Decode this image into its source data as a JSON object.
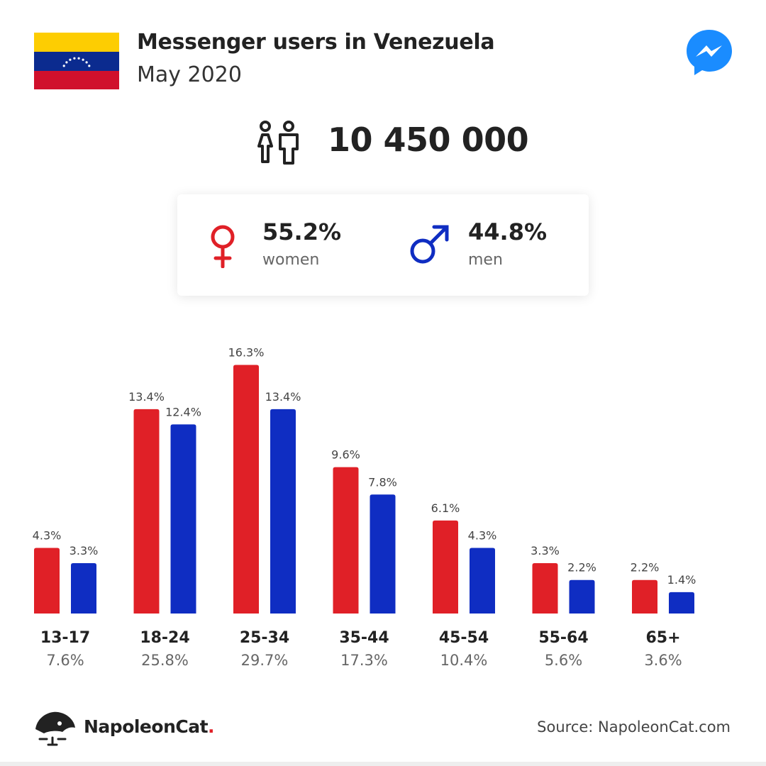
{
  "header": {
    "title": "Messenger users in Venezuela",
    "subtitle": "May 2020",
    "flag_icon": "venezuela-flag-icon",
    "app_icon": "messenger-icon"
  },
  "summary": {
    "total": "10 450 000",
    "women": {
      "percent": "55.2%",
      "label": "women"
    },
    "men": {
      "percent": "44.8%",
      "label": "men"
    }
  },
  "colors": {
    "women": "#e02027",
    "men": "#0f2dc2",
    "messenger": "#1a8cff"
  },
  "chart_data": {
    "type": "bar",
    "categories": [
      "13-17",
      "18-24",
      "25-34",
      "35-44",
      "45-54",
      "55-64",
      "65+"
    ],
    "category_totals": [
      "7.6%",
      "25.8%",
      "29.7%",
      "17.3%",
      "10.4%",
      "5.6%",
      "3.6%"
    ],
    "series": [
      {
        "values": [
          4.3,
          13.4,
          16.3,
          9.6,
          6.1,
          3.3,
          2.2
        ],
        "labels": [
          "4.3%",
          "13.4%",
          "16.3%",
          "9.6%",
          "6.1%",
          "3.3%",
          "2.2%"
        ]
      },
      {
        "values": [
          3.3,
          12.4,
          13.4,
          7.8,
          4.3,
          2.2,
          1.4
        ],
        "labels": [
          "3.3%",
          "12.4%",
          "13.4%",
          "7.8%",
          "4.3%",
          "2.2%",
          "1.4%"
        ]
      }
    ],
    "grid": false,
    "legend": "none"
  },
  "footer": {
    "brand": "NapoleonCat",
    "brand_dot": ".",
    "source": "Source: NapoleonCat.com",
    "logo_icon": "napoleoncat-logo-icon"
  }
}
